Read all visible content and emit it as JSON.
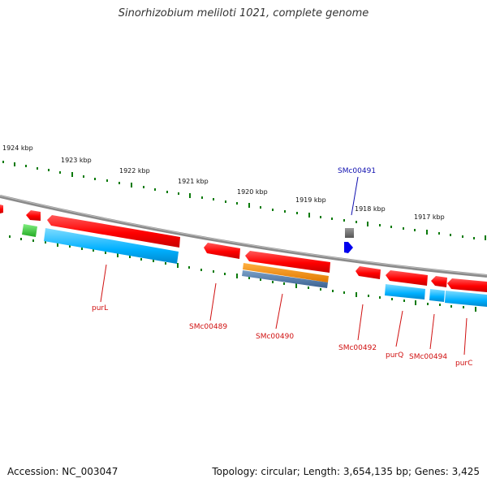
{
  "title": "Sinorhizobium meliloti 1021, complete genome",
  "footer": {
    "accession": "Accession: NC_003047",
    "summary": "Topology: circular; Length: 3,654,135 bp; Genes: 3,425"
  },
  "scale_labels": [
    "1924 kbp",
    "1923 kbp",
    "1922 kbp",
    "1921 kbp",
    "1920 kbp",
    "1919 kbp",
    "1918 kbp",
    "1917 kbp"
  ],
  "gene_labels": [
    "SMc00491",
    "purL",
    "SMc00489",
    "SMc00490",
    "SMc00492",
    "purQ",
    "SMc00494",
    "purC"
  ],
  "colors": {
    "gene_red": "#ff0000",
    "gene_blue": "#00aaff",
    "gene_orange": "#ff8c00",
    "gene_green": "#33cc33",
    "gene_gray": "#707070",
    "gene_darkblue": "#0000ee",
    "backbone": "#888888",
    "tick_green": "#007700",
    "label_red": "#d01010",
    "label_blue": "#1010b0"
  }
}
